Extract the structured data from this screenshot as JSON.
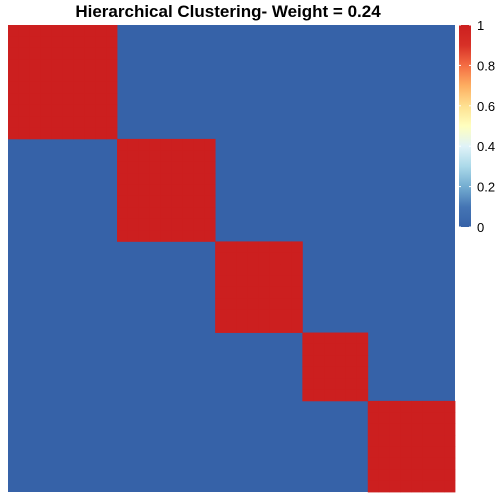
{
  "chart_data": {
    "type": "heatmap",
    "title": "Hierarchical Clustering- Weight = 0.24",
    "xlabel": "",
    "ylabel": "",
    "block_sizes": [
      10,
      9,
      8,
      6,
      8
    ],
    "matrix_note_values": "cell = 1 when row and column fall in the same cluster block, otherwise 0",
    "value_range": [
      0,
      1
    ],
    "legend": {
      "position": "right",
      "ticks": [
        "0",
        "0.2",
        "0.4",
        "0.6",
        "0.8",
        "1"
      ],
      "tick_values": [
        0,
        0.2,
        0.4,
        0.6,
        0.8,
        1
      ]
    },
    "colors": {
      "low": "#3662a8",
      "mid": "#ffffbf",
      "high": "#cc1f1f",
      "scale": [
        "#3662a8",
        "#4575b4",
        "#74add1",
        "#abd9e9",
        "#e0f3f8",
        "#ffffbf",
        "#fee090",
        "#fdae61",
        "#f46d43",
        "#d73027",
        "#cc1f1f"
      ]
    },
    "grid": false
  }
}
